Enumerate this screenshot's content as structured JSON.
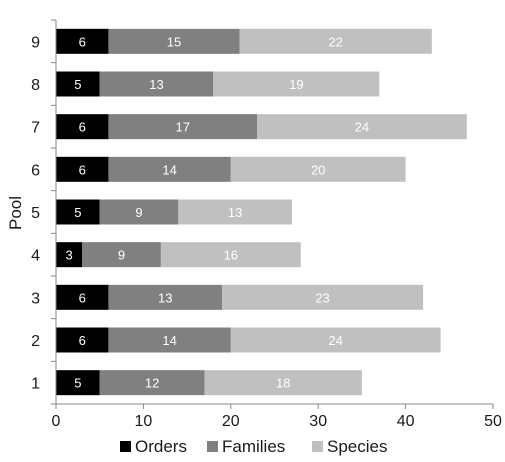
{
  "chart_data": {
    "type": "bar",
    "orientation": "horizontal",
    "stacked": true,
    "title": "",
    "xlabel": "",
    "ylabel": "Pool",
    "categories": [
      "1",
      "2",
      "3",
      "4",
      "5",
      "6",
      "7",
      "8",
      "9"
    ],
    "series": [
      {
        "name": "Orders",
        "color": "#000000",
        "values": [
          5,
          6,
          6,
          3,
          5,
          6,
          6,
          5,
          6
        ]
      },
      {
        "name": "Families",
        "color": "#808080",
        "values": [
          12,
          14,
          13,
          9,
          9,
          14,
          17,
          13,
          15
        ]
      },
      {
        "name": "Species",
        "color": "#c0c0c0",
        "values": [
          18,
          24,
          23,
          16,
          13,
          20,
          24,
          19,
          22
        ]
      }
    ],
    "xlim": [
      0,
      50
    ],
    "xticks": [
      0,
      10,
      20,
      30,
      40,
      50
    ],
    "grid": false,
    "legend_position": "bottom"
  }
}
